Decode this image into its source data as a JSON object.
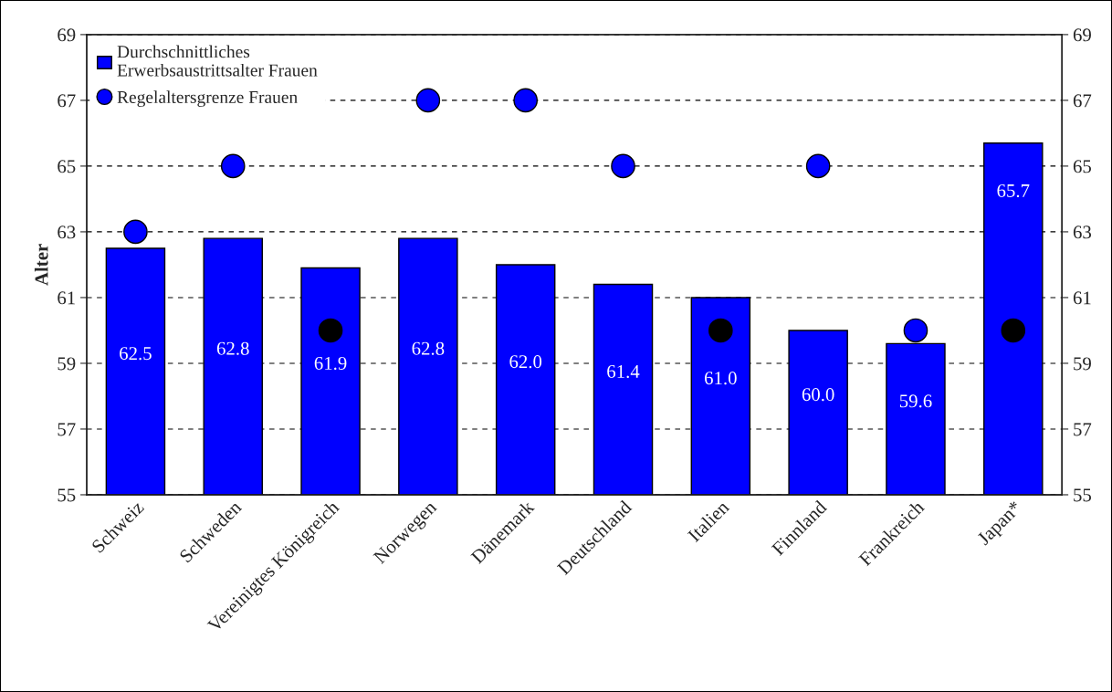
{
  "chart_data": {
    "type": "bar",
    "ylabel": "Alter",
    "categories": [
      "Schweiz",
      "Schweden",
      "Vereinigtes Königreich",
      "Norwegen",
      "Dänemark",
      "Deutschland",
      "Italien",
      "Finnland",
      "Frankreich",
      "Japan*"
    ],
    "series": [
      {
        "name": "Durchschnittliches\nErwerbsaustrittsalter Frauen",
        "color": "#0000ff",
        "values": [
          62.5,
          62.8,
          61.9,
          62.8,
          62.0,
          61.4,
          61.0,
          60.0,
          59.6,
          65.7
        ],
        "value_labels": [
          "62.5",
          "62.8",
          "61.9",
          "62.8",
          "62.0",
          "61.4",
          "61.0",
          "60.0",
          "59.6",
          "65.7"
        ]
      },
      {
        "name": "Regelaltersgrenze Frauen",
        "type": "scatter",
        "marker": "circle",
        "color": "#0000ff",
        "colors": [
          "#0000ff",
          "#0000ff",
          "#000000",
          "#0000ff",
          "#0000ff",
          "#0000ff",
          "#000000",
          "#0000ff",
          "#0000ff",
          "#000000"
        ],
        "x": [
          "Schweiz",
          "Schweden",
          "Vereinigtes Königreich",
          "Norwegen",
          "Dänemark",
          "Deutschland",
          "Italien",
          "Finnland",
          "Frankreich",
          "Japan*"
        ],
        "values": [
          63,
          65,
          60,
          67,
          67,
          65,
          60,
          65,
          60,
          60
        ]
      }
    ],
    "ylim": [
      55,
      69
    ],
    "yticks": [
      55,
      57,
      59,
      61,
      63,
      65,
      67,
      69
    ],
    "y2lim": [
      55,
      69
    ],
    "y2ticks": [
      55,
      57,
      59,
      61,
      63,
      65,
      67,
      69
    ],
    "grid": "y",
    "legend": "top left"
  }
}
